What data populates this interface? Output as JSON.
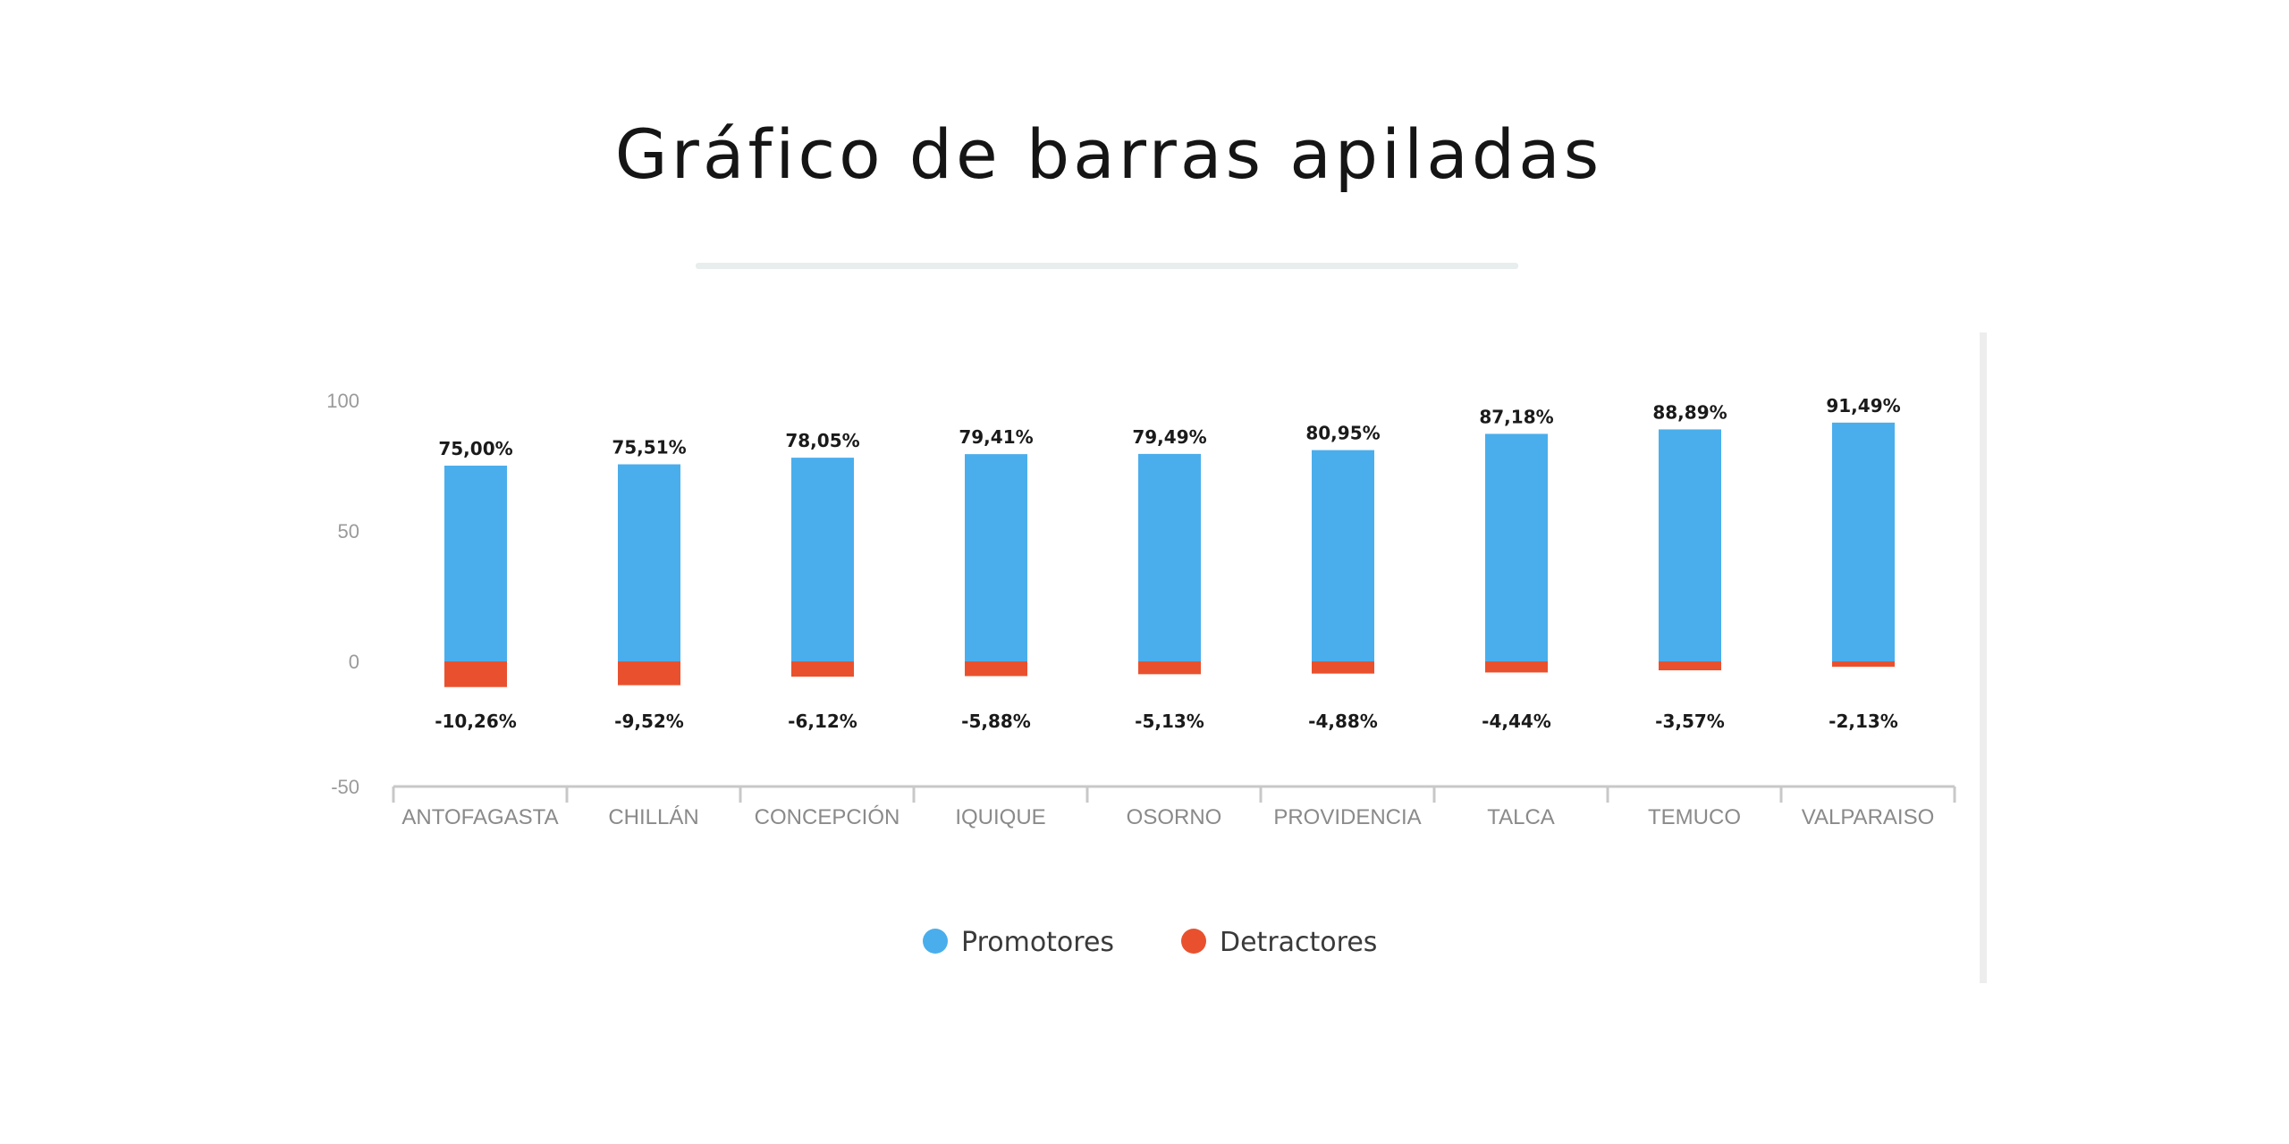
{
  "slide": {
    "title": "Gráfico de barras apiladas"
  },
  "colors": {
    "promotores": "#4aaeec",
    "detractores": "#e9512e",
    "axis": "#c8c8c8",
    "title_rule": "#e8eded"
  },
  "chart_data": {
    "type": "bar",
    "stacked": true,
    "title": "",
    "xlabel": "",
    "ylabel": "",
    "ylim": [
      -50,
      100
    ],
    "yticks": [
      "100",
      "50",
      "0",
      "-50"
    ],
    "grid": false,
    "legend_position": "bottom",
    "categories": [
      "ANTOFAGASTA",
      "CHILLÁN",
      "CONCEPCIÓN",
      "IQUIQUE",
      "OSORNO",
      "PROVIDENCIA",
      "TALCA",
      "TEMUCO",
      "VALPARAISO"
    ],
    "series": [
      {
        "name": "Promotores",
        "color": "#4aaeec",
        "values": [
          75.0,
          75.51,
          78.05,
          79.41,
          79.49,
          80.95,
          87.18,
          88.89,
          91.49
        ],
        "labels": [
          "75,00%",
          "75,51%",
          "78,05%",
          "79,41%",
          "79,49%",
          "80,95%",
          "87,18%",
          "88,89%",
          "91,49%"
        ]
      },
      {
        "name": "Detractores",
        "color": "#e9512e",
        "values": [
          -10.26,
          -9.52,
          -6.12,
          -5.88,
          -5.13,
          -4.88,
          -4.44,
          -3.57,
          -2.13
        ],
        "labels": [
          "-10,26%",
          "-9,52%",
          "-6,12%",
          "-5,88%",
          "-5,13%",
          "-4,88%",
          "-4,44%",
          "-3,57%",
          "-2,13%"
        ]
      }
    ]
  }
}
